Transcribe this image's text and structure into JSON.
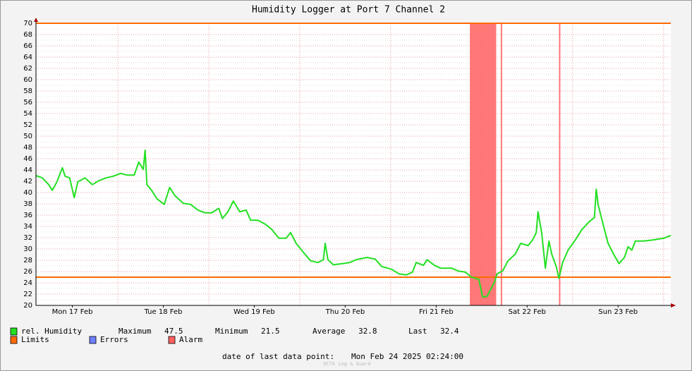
{
  "chart_data": {
    "type": "line",
    "title": "Humidity Logger at Port 7 Channel 2",
    "x": [
      0.1,
      0.17,
      0.24,
      0.28,
      0.33,
      0.39,
      0.42,
      0.47,
      0.52,
      0.56,
      0.64,
      0.72,
      0.79,
      0.87,
      0.95,
      1.03,
      1.1,
      1.18,
      1.23,
      1.28,
      1.3,
      1.32,
      1.37,
      1.43,
      1.51,
      1.57,
      1.63,
      1.72,
      1.8,
      1.88,
      1.96,
      2.03,
      2.11,
      2.15,
      2.21,
      2.27,
      2.34,
      2.41,
      2.46,
      2.54,
      2.62,
      2.69,
      2.77,
      2.85,
      2.9,
      2.96,
      3.04,
      3.12,
      3.2,
      3.26,
      3.28,
      3.31,
      3.37,
      3.47,
      3.55,
      3.62,
      3.74,
      3.83,
      3.9,
      4.01,
      4.09,
      4.17,
      4.24,
      4.28,
      4.36,
      4.4,
      4.48,
      4.55,
      4.67,
      4.74,
      4.82,
      4.89,
      4.97,
      5.01,
      5.06,
      5.14,
      5.17,
      5.23,
      5.29,
      5.37,
      5.43,
      5.51,
      5.56,
      5.6,
      5.62,
      5.66,
      5.7,
      5.74,
      5.77,
      5.82,
      5.85,
      5.89,
      5.95,
      6.03,
      6.1,
      6.18,
      6.24,
      6.26,
      6.28,
      6.34,
      6.39,
      6.45,
      6.51,
      6.57,
      6.61,
      6.65,
      6.69,
      6.78,
      6.88,
      7.0,
      7.08
    ],
    "series": [
      {
        "name": "rel. Humidity",
        "color": "#22e022",
        "values": [
          43.0,
          42.6,
          41.4,
          40.4,
          41.9,
          44.4,
          42.9,
          42.6,
          39.1,
          41.9,
          42.6,
          41.4,
          42.1,
          42.6,
          42.9,
          43.4,
          43.1,
          43.1,
          45.4,
          44.1,
          47.5,
          41.4,
          40.4,
          38.9,
          37.9,
          40.9,
          39.4,
          38.1,
          37.9,
          36.9,
          36.4,
          36.4,
          37.2,
          35.4,
          36.6,
          38.5,
          36.6,
          36.9,
          35.1,
          35.1,
          34.4,
          33.5,
          31.9,
          31.9,
          32.9,
          31.0,
          29.4,
          27.9,
          27.6,
          28.1,
          31.0,
          28.1,
          27.2,
          27.4,
          27.6,
          28.1,
          28.5,
          28.2,
          26.9,
          26.4,
          25.6,
          25.4,
          25.9,
          27.6,
          27.1,
          28.1,
          27.1,
          26.6,
          26.6,
          26.1,
          25.9,
          25.0,
          24.6,
          21.5,
          21.6,
          24.1,
          25.6,
          26.1,
          27.9,
          29.1,
          31.0,
          30.6,
          31.6,
          32.9,
          36.6,
          32.9,
          26.6,
          31.4,
          29.1,
          26.9,
          24.8,
          27.6,
          29.8,
          31.6,
          33.4,
          34.8,
          35.6,
          40.6,
          37.9,
          34.1,
          31.0,
          29.1,
          27.4,
          28.5,
          30.4,
          29.8,
          31.4,
          31.4,
          31.6,
          31.9,
          32.4
        ]
      }
    ],
    "xlim": [
      0.1,
      7.08
    ],
    "xticks": [
      {
        "value": 0.5,
        "label": "Mon 17 Feb"
      },
      {
        "value": 1.5,
        "label": "Tue 18 Feb"
      },
      {
        "value": 2.5,
        "label": "Wed 19 Feb"
      },
      {
        "value": 3.5,
        "label": "Thu 20 Feb"
      },
      {
        "value": 4.5,
        "label": "Fri 21 Feb"
      },
      {
        "value": 5.5,
        "label": "Sat 22 Feb"
      },
      {
        "value": 6.5,
        "label": "Sun 23 Feb"
      }
    ],
    "xgrid": [
      1,
      2,
      3,
      4,
      5,
      6,
      7
    ],
    "ylim": [
      20,
      70
    ],
    "yticks": [
      20,
      22,
      24,
      26,
      28,
      30,
      32,
      34,
      36,
      38,
      40,
      42,
      44,
      46,
      48,
      50,
      52,
      54,
      56,
      58,
      60,
      62,
      64,
      66,
      68,
      70
    ],
    "yminor": [
      21,
      23,
      25,
      27,
      29,
      31,
      33,
      35,
      37,
      39,
      41,
      43,
      45,
      47,
      49,
      51,
      53,
      55,
      57,
      59,
      61,
      63,
      65,
      67,
      69
    ],
    "limits": {
      "name": "Limits",
      "color": "#ff6a00",
      "values": [
        25,
        70
      ]
    },
    "errors": {
      "name": "Errors",
      "color": "#7080ff"
    },
    "alarm": {
      "name": "Alarm",
      "color": "#ff6060",
      "spans": [
        [
          4.87,
          5.16
        ],
        [
          5.21,
          5.21
        ],
        [
          5.85,
          5.86
        ]
      ]
    },
    "stats": [
      {
        "label": "Maximum",
        "value": 47.5
      },
      {
        "label": "Minimum",
        "value": 21.5
      },
      {
        "label": "Average",
        "value": 32.8
      },
      {
        "label": "Last",
        "value": 32.4
      }
    ],
    "footer_label": "date of last data point:",
    "footer_value": "Mon Feb 24 2025 02:24:00",
    "watermark": "OCTA Log & Guard",
    "grid": true
  }
}
